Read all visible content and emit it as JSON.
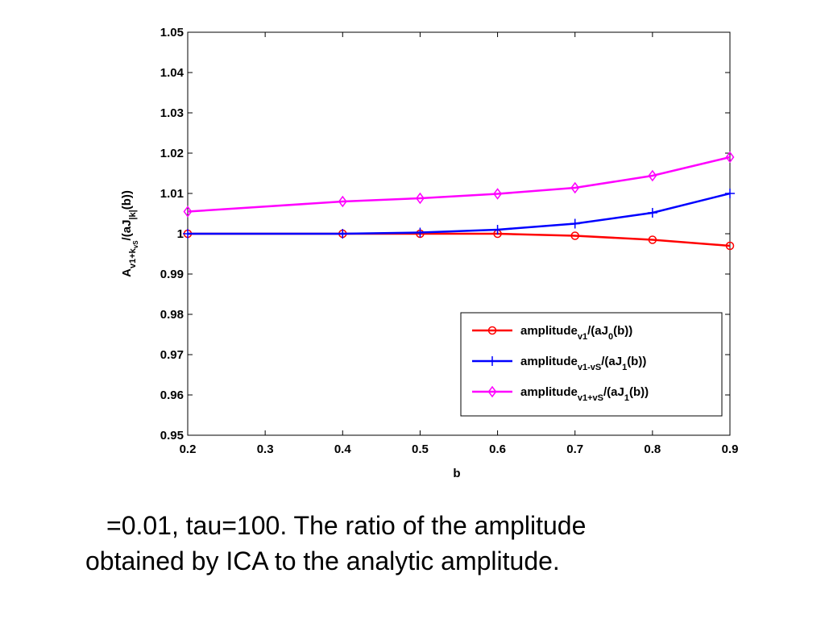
{
  "chart_data": {
    "type": "line",
    "xlabel": "b",
    "ylabel_parts": {
      "main": "A",
      "sub1": "v1+k",
      "sub1b": "vS",
      "mid": "/(aJ",
      "sub2": "|k|",
      "tail": "(b))"
    },
    "xlim": [
      0.2,
      0.9
    ],
    "ylim": [
      0.95,
      1.05
    ],
    "xticks": [
      "0.2",
      "0.3",
      "0.4",
      "0.5",
      "0.6",
      "0.7",
      "0.8",
      "0.9"
    ],
    "yticks": [
      "0.95",
      "0.96",
      "0.97",
      "0.98",
      "0.99",
      "1",
      "1.01",
      "1.02",
      "1.03",
      "1.04",
      "1.05"
    ],
    "grid": false,
    "legend_position": "bottom-right",
    "x": [
      0.2,
      0.4,
      0.5,
      0.6,
      0.7,
      0.8,
      0.9
    ],
    "series": [
      {
        "legend_main": "amplitude",
        "legend_sub": "v1",
        "legend_mid": "/(aJ",
        "legend_sub2": "0",
        "legend_tail": "(b))",
        "color": "#ff0000",
        "marker": "circle",
        "values": [
          1.0,
          1.0,
          1.0,
          1.0,
          0.9995,
          0.9985,
          0.997
        ]
      },
      {
        "legend_main": "amplitude",
        "legend_sub": "v1-vS",
        "legend_mid": "/(aJ",
        "legend_sub2": "1",
        "legend_tail": "(b))",
        "color": "#0000ff",
        "marker": "plus",
        "values": [
          1.0,
          1.0,
          1.0003,
          1.001,
          1.0025,
          1.0052,
          1.01
        ]
      },
      {
        "legend_main": "amplitude",
        "legend_sub": "v1+vS",
        "legend_mid": "/(aJ",
        "legend_sub2": "1",
        "legend_tail": "(b))",
        "color": "#ff00ff",
        "marker": "diamond",
        "values": [
          1.0055,
          1.008,
          1.0088,
          1.0099,
          1.0114,
          1.0144,
          1.019
        ]
      }
    ]
  },
  "caption": {
    "line1": "=0.01, tau=100. The ratio of the amplitude",
    "line2": "obtained by ICA to the analytic amplitude."
  }
}
